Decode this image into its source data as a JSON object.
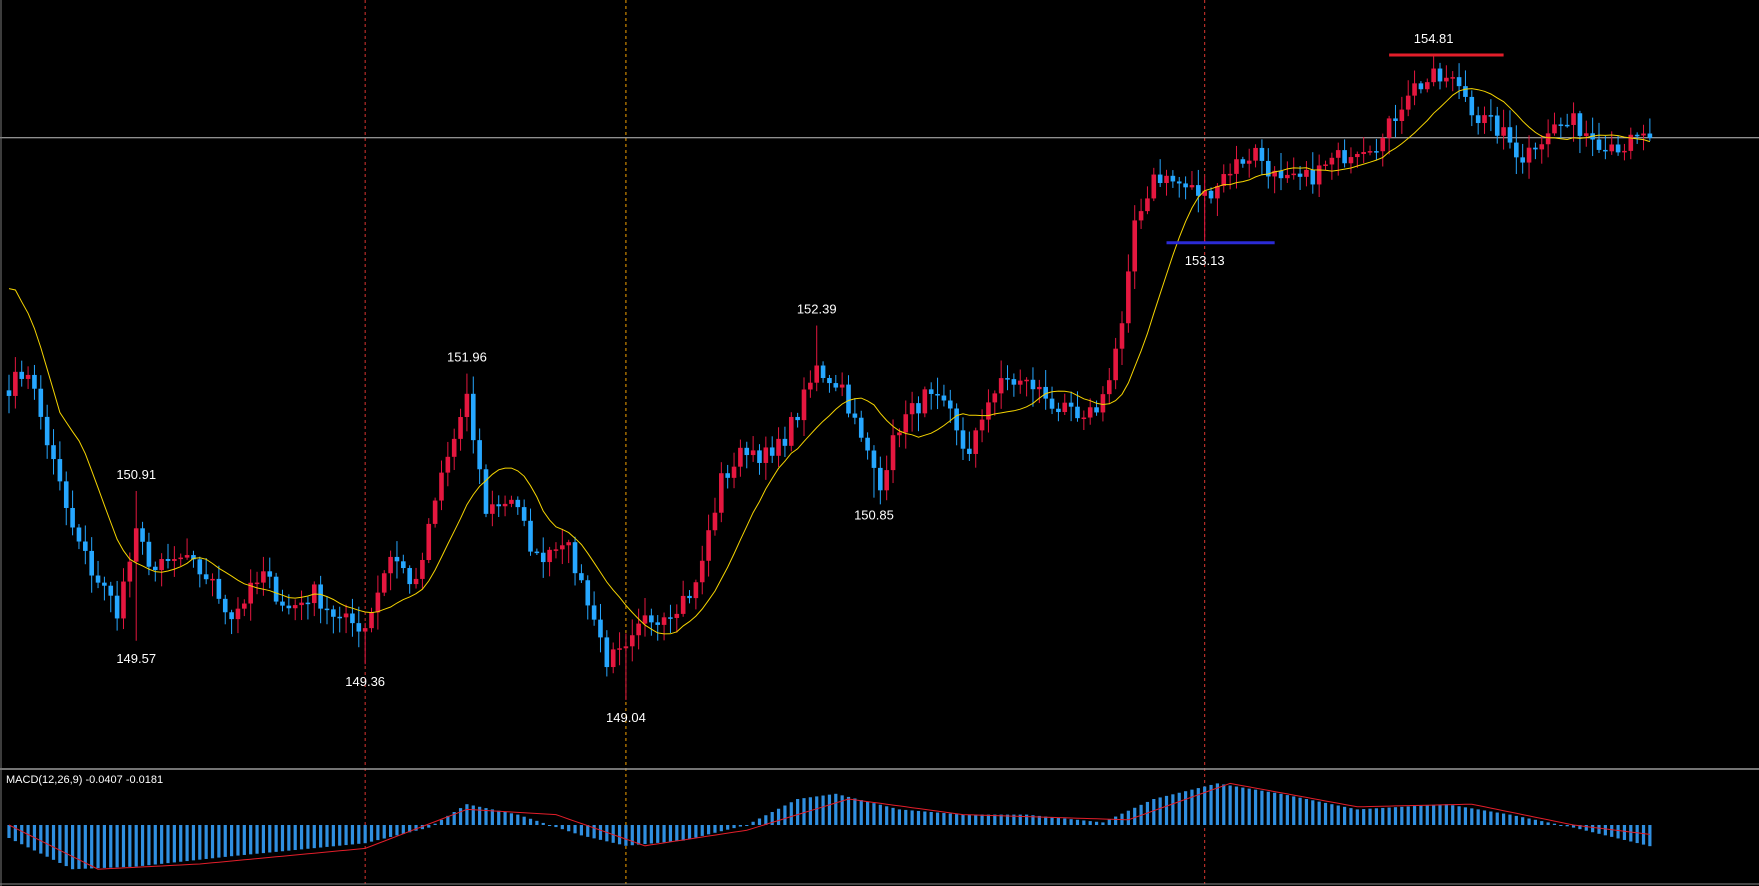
{
  "chart_data": [
    {
      "type": "candlestick",
      "title": "",
      "xlabel": "",
      "ylabel": "",
      "ylim": [
        148.8,
        155.0
      ],
      "grid": false,
      "colors": {
        "background": "#000000",
        "bull": "#e5173f",
        "bear": "#26a7ff",
        "ma": "#f5d400",
        "crosshair": "#bfbfbf",
        "vline_red": "#d9352f",
        "vline_orange": "#f5a300",
        "support_level": "#2b2bd6",
        "resistance_level": "#e21e2a"
      },
      "annotations": [
        {
          "label": "150.91",
          "index": 20,
          "value": 150.91,
          "position": "above"
        },
        {
          "label": "149.57",
          "index": 20,
          "value": 149.57,
          "position": "below"
        },
        {
          "label": "149.36",
          "index": 56,
          "value": 149.36,
          "position": "below"
        },
        {
          "label": "151.96",
          "index": 72,
          "value": 151.96,
          "position": "above"
        },
        {
          "label": "149.04",
          "index": 97,
          "value": 149.04,
          "position": "below"
        },
        {
          "label": "152.39",
          "index": 127,
          "value": 152.39,
          "position": "above"
        },
        {
          "label": "150.85",
          "index": 136,
          "value": 150.85,
          "position": "below"
        },
        {
          "label": "153.13",
          "index": 188,
          "value": 153.13,
          "position": "below"
        },
        {
          "label": "154.81",
          "index": 224,
          "value": 154.81,
          "position": "above"
        }
      ],
      "levels": [
        {
          "value": 153.13,
          "from_index": 182,
          "to_index": 199,
          "color_key": "support_level"
        },
        {
          "value": 154.81,
          "from_index": 217,
          "to_index": 235,
          "color_key": "resistance_level"
        }
      ],
      "vertical_markers": [
        {
          "index": 56,
          "color_key": "vline_red"
        },
        {
          "index": 97,
          "color_key": "vline_orange"
        },
        {
          "index": 188,
          "color_key": "vline_red"
        }
      ],
      "horizontal_crosshair": 154.07,
      "anchors": [
        [
          0,
          151.85
        ],
        [
          3,
          152.0
        ],
        [
          6,
          151.35
        ],
        [
          10,
          150.55
        ],
        [
          13,
          150.2
        ],
        [
          17,
          149.85
        ],
        [
          20,
          150.5
        ],
        [
          23,
          150.2
        ],
        [
          27,
          150.3
        ],
        [
          31,
          150.15
        ],
        [
          35,
          149.8
        ],
        [
          40,
          150.15
        ],
        [
          44,
          149.85
        ],
        [
          48,
          150.0
        ],
        [
          52,
          149.75
        ],
        [
          56,
          149.7
        ],
        [
          60,
          150.35
        ],
        [
          64,
          150.05
        ],
        [
          68,
          151.05
        ],
        [
          72,
          151.7
        ],
        [
          75,
          150.75
        ],
        [
          79,
          150.85
        ],
        [
          83,
          150.3
        ],
        [
          87,
          150.5
        ],
        [
          91,
          149.95
        ],
        [
          94,
          149.4
        ],
        [
          97,
          149.45
        ],
        [
          100,
          149.75
        ],
        [
          104,
          149.85
        ],
        [
          108,
          150.05
        ],
        [
          112,
          151.0
        ],
        [
          116,
          151.3
        ],
        [
          120,
          151.2
        ],
        [
          124,
          151.6
        ],
        [
          127,
          152.0
        ],
        [
          131,
          151.85
        ],
        [
          134,
          151.35
        ],
        [
          137,
          151.0
        ],
        [
          140,
          151.5
        ],
        [
          144,
          151.75
        ],
        [
          148,
          151.6
        ],
        [
          151,
          151.2
        ],
        [
          154,
          151.75
        ],
        [
          157,
          151.9
        ],
        [
          161,
          151.85
        ],
        [
          165,
          151.65
        ],
        [
          169,
          151.5
        ],
        [
          172,
          151.75
        ],
        [
          175,
          152.4
        ],
        [
          177,
          153.25
        ],
        [
          180,
          153.75
        ],
        [
          184,
          153.65
        ],
        [
          188,
          153.55
        ],
        [
          192,
          153.8
        ],
        [
          196,
          153.95
        ],
        [
          200,
          153.65
        ],
        [
          204,
          153.7
        ],
        [
          208,
          153.85
        ],
        [
          212,
          154.0
        ],
        [
          216,
          154.05
        ],
        [
          220,
          154.5
        ],
        [
          224,
          154.6
        ],
        [
          228,
          154.55
        ],
        [
          231,
          154.25
        ],
        [
          234,
          154.15
        ],
        [
          238,
          153.9
        ],
        [
          242,
          154.15
        ],
        [
          246,
          154.2
        ],
        [
          250,
          154.05
        ],
        [
          254,
          154.0
        ],
        [
          258,
          154.08
        ]
      ],
      "count": 259
    },
    {
      "type": "bar",
      "title": "MACD(12,26,9) -0.0407 -0.0181",
      "series": [
        {
          "name": "MACD",
          "anchors": [
            [
              0,
              -0.025
            ],
            [
              10,
              -0.085
            ],
            [
              20,
              -0.08
            ],
            [
              35,
              -0.06
            ],
            [
              56,
              -0.035
            ],
            [
              66,
              -0.005
            ],
            [
              72,
              0.04
            ],
            [
              80,
              0.02
            ],
            [
              90,
              -0.02
            ],
            [
              97,
              -0.04
            ],
            [
              106,
              -0.03
            ],
            [
              116,
              0.0
            ],
            [
              124,
              0.05
            ],
            [
              130,
              0.06
            ],
            [
              140,
              0.03
            ],
            [
              150,
              0.02
            ],
            [
              160,
              0.02
            ],
            [
              172,
              0.005
            ],
            [
              180,
              0.05
            ],
            [
              190,
              0.08
            ],
            [
              200,
              0.06
            ],
            [
              212,
              0.03
            ],
            [
              226,
              0.04
            ],
            [
              236,
              0.02
            ],
            [
              246,
              -0.005
            ],
            [
              258,
              -0.0407
            ]
          ]
        },
        {
          "name": "Signal",
          "anchors": [
            [
              0,
              0.0
            ],
            [
              14,
              -0.085
            ],
            [
              30,
              -0.075
            ],
            [
              56,
              -0.045
            ],
            [
              72,
              0.03
            ],
            [
              86,
              0.02
            ],
            [
              100,
              -0.04
            ],
            [
              116,
              -0.01
            ],
            [
              132,
              0.05
            ],
            [
              150,
              0.02
            ],
            [
              176,
              0.01
            ],
            [
              192,
              0.08
            ],
            [
              212,
              0.035
            ],
            [
              230,
              0.04
            ],
            [
              246,
              0.0
            ],
            [
              258,
              -0.0181
            ]
          ]
        }
      ],
      "ylim": [
        -0.1,
        0.1
      ]
    }
  ]
}
